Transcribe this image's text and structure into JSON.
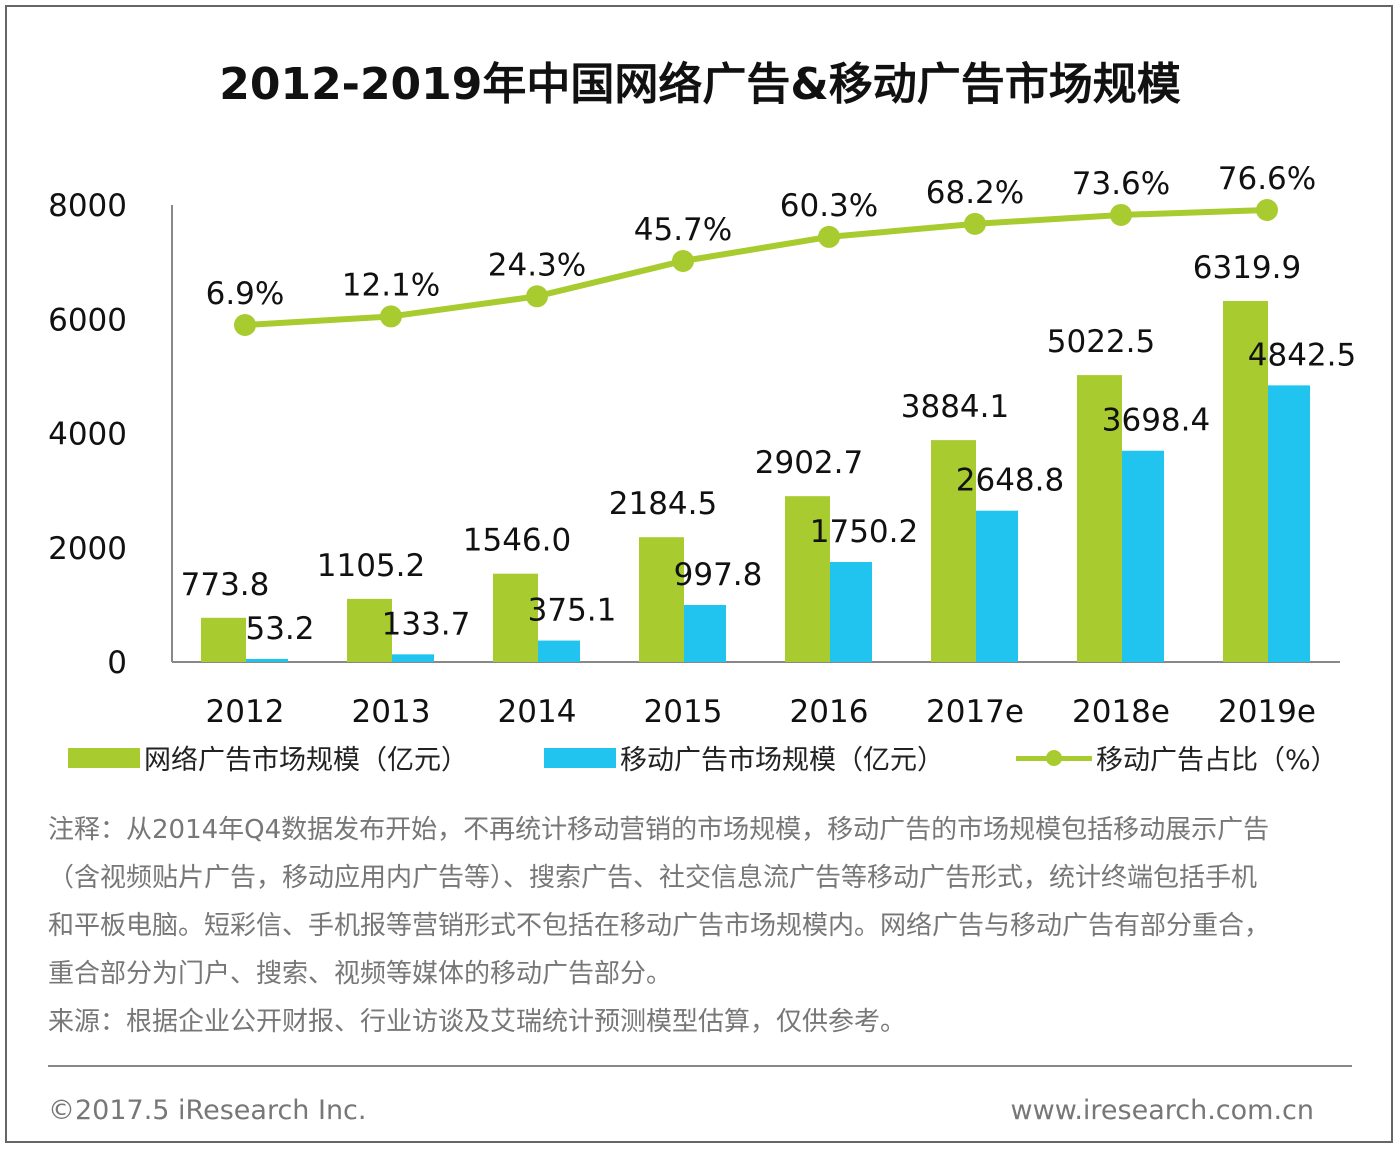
{
  "title": "2012-2019年中国网络广告&移动广告市场规模",
  "colors": {
    "network": "#a8cb2f",
    "mobile": "#20c4ee",
    "share": "#a8cb2f"
  },
  "chart_data": {
    "type": "bar+line",
    "title": "2012-2019年中国网络广告&移动广告市场规模",
    "categories": [
      "2012",
      "2013",
      "2014",
      "2015",
      "2016",
      "2017e",
      "2018e",
      "2019e"
    ],
    "y_ticks": [
      "0",
      "2000",
      "4000",
      "6000",
      "8000"
    ],
    "ylim": [
      0,
      8000
    ],
    "grid": false,
    "legend_position": "bottom",
    "series": [
      {
        "name": "网络广告市场规模（亿元）",
        "type": "bar",
        "values": [
          773.8,
          1105.2,
          1546.0,
          2184.5,
          2902.7,
          3884.1,
          5022.5,
          6319.9
        ],
        "labels": [
          "773.8",
          "1105.2",
          "1546.0",
          "2184.5",
          "2902.7",
          "3884.1",
          "5022.5",
          "6319.9"
        ]
      },
      {
        "name": "移动广告市场规模（亿元）",
        "type": "bar",
        "values": [
          53.2,
          133.7,
          375.1,
          997.8,
          1750.2,
          2648.8,
          3698.4,
          4842.5
        ],
        "labels": [
          "53.2",
          "133.7",
          "375.1",
          "997.8",
          "1750.2",
          "2648.8",
          "3698.4",
          "4842.5"
        ]
      },
      {
        "name": "移动广告占比（%）",
        "type": "line",
        "axis": "secondary",
        "values": [
          6.9,
          12.1,
          24.3,
          45.7,
          60.3,
          68.2,
          73.6,
          76.6
        ],
        "labels": [
          "6.9%",
          "12.1%",
          "24.3%",
          "45.7%",
          "60.3%",
          "68.2%",
          "73.6%",
          "76.6%"
        ]
      }
    ]
  },
  "legend": [
    "网络广告市场规模（亿元）",
    "移动广告市场规模（亿元）",
    "移动广告占比（%）"
  ],
  "notes": [
    "注释：从2014年Q4数据发布开始，不再统计移动营销的市场规模，移动广告的市场规模包括移动展示广告",
    "（含视频贴片广告，移动应用内广告等）、搜索广告、社交信息流广告等移动广告形式，统计终端包括手机",
    "和平板电脑。短彩信、手机报等营销形式不包括在移动广告市场规模内。网络广告与移动广告有部分重合，",
    "重合部分为门户、搜索、视频等媒体的移动广告部分。",
    "来源：根据企业公开财报、行业访谈及艾瑞统计预测模型估算，仅供参考。"
  ],
  "footer": {
    "copyright": "©2017.5 iResearch Inc.",
    "website": "www.iresearch.com.cn"
  }
}
